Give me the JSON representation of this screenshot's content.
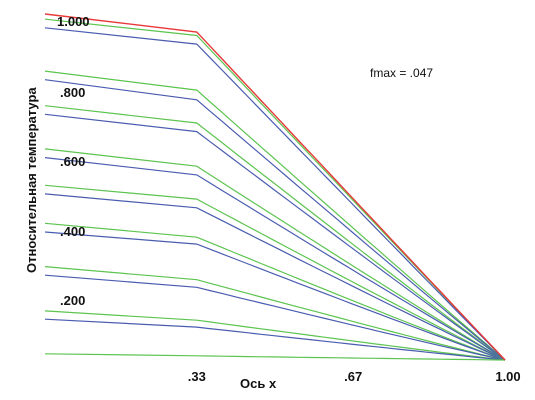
{
  "chart_data": {
    "type": "line",
    "xlabel": "Ось x",
    "ylabel": "Относительная температура",
    "annotation": "fmax = .047",
    "xlim": [
      0,
      1
    ],
    "ylim": [
      0,
      1
    ],
    "x_ticks": [
      {
        "value": 0.33,
        "label": ".33"
      },
      {
        "value": 0.67,
        "label": ".67"
      },
      {
        "value": 1.0,
        "label": "1.00"
      }
    ],
    "y_ticks": [
      {
        "value": 1.0,
        "label": "1.000"
      },
      {
        "value": 0.8,
        "label": ".800"
      },
      {
        "value": 0.6,
        "label": ".600"
      },
      {
        "value": 0.4,
        "label": ".400"
      },
      {
        "value": 0.2,
        "label": ".200"
      }
    ],
    "grid": false,
    "colors": {
      "red": "#e8383a",
      "green": "#5cc44f",
      "blue": "#4a5cb0"
    },
    "series": [
      {
        "color": "green",
        "y0": 0.985,
        "y33": 0.938
      },
      {
        "color": "blue",
        "y0": 0.96,
        "y33": 0.913
      },
      {
        "color": "green",
        "y0": 0.835,
        "y33": 0.78
      },
      {
        "color": "blue",
        "y0": 0.81,
        "y33": 0.752
      },
      {
        "color": "green",
        "y0": 0.735,
        "y33": 0.685
      },
      {
        "color": "blue",
        "y0": 0.71,
        "y33": 0.66
      },
      {
        "color": "green",
        "y0": 0.61,
        "y33": 0.56
      },
      {
        "color": "blue",
        "y0": 0.585,
        "y33": 0.535
      },
      {
        "color": "green",
        "y0": 0.505,
        "y33": 0.465
      },
      {
        "color": "blue",
        "y0": 0.48,
        "y33": 0.44
      },
      {
        "color": "green",
        "y0": 0.395,
        "y33": 0.355
      },
      {
        "color": "blue",
        "y0": 0.37,
        "y33": 0.335
      },
      {
        "color": "green",
        "y0": 0.27,
        "y33": 0.232
      },
      {
        "color": "blue",
        "y0": 0.245,
        "y33": 0.21
      },
      {
        "color": "green",
        "y0": 0.142,
        "y33": 0.115
      },
      {
        "color": "blue",
        "y0": 0.118,
        "y33": 0.095
      },
      {
        "color": "green",
        "y0": 0.018,
        "y33": 0.012
      },
      {
        "color": "red",
        "y0": 1.0,
        "y33": 0.948
      }
    ]
  }
}
